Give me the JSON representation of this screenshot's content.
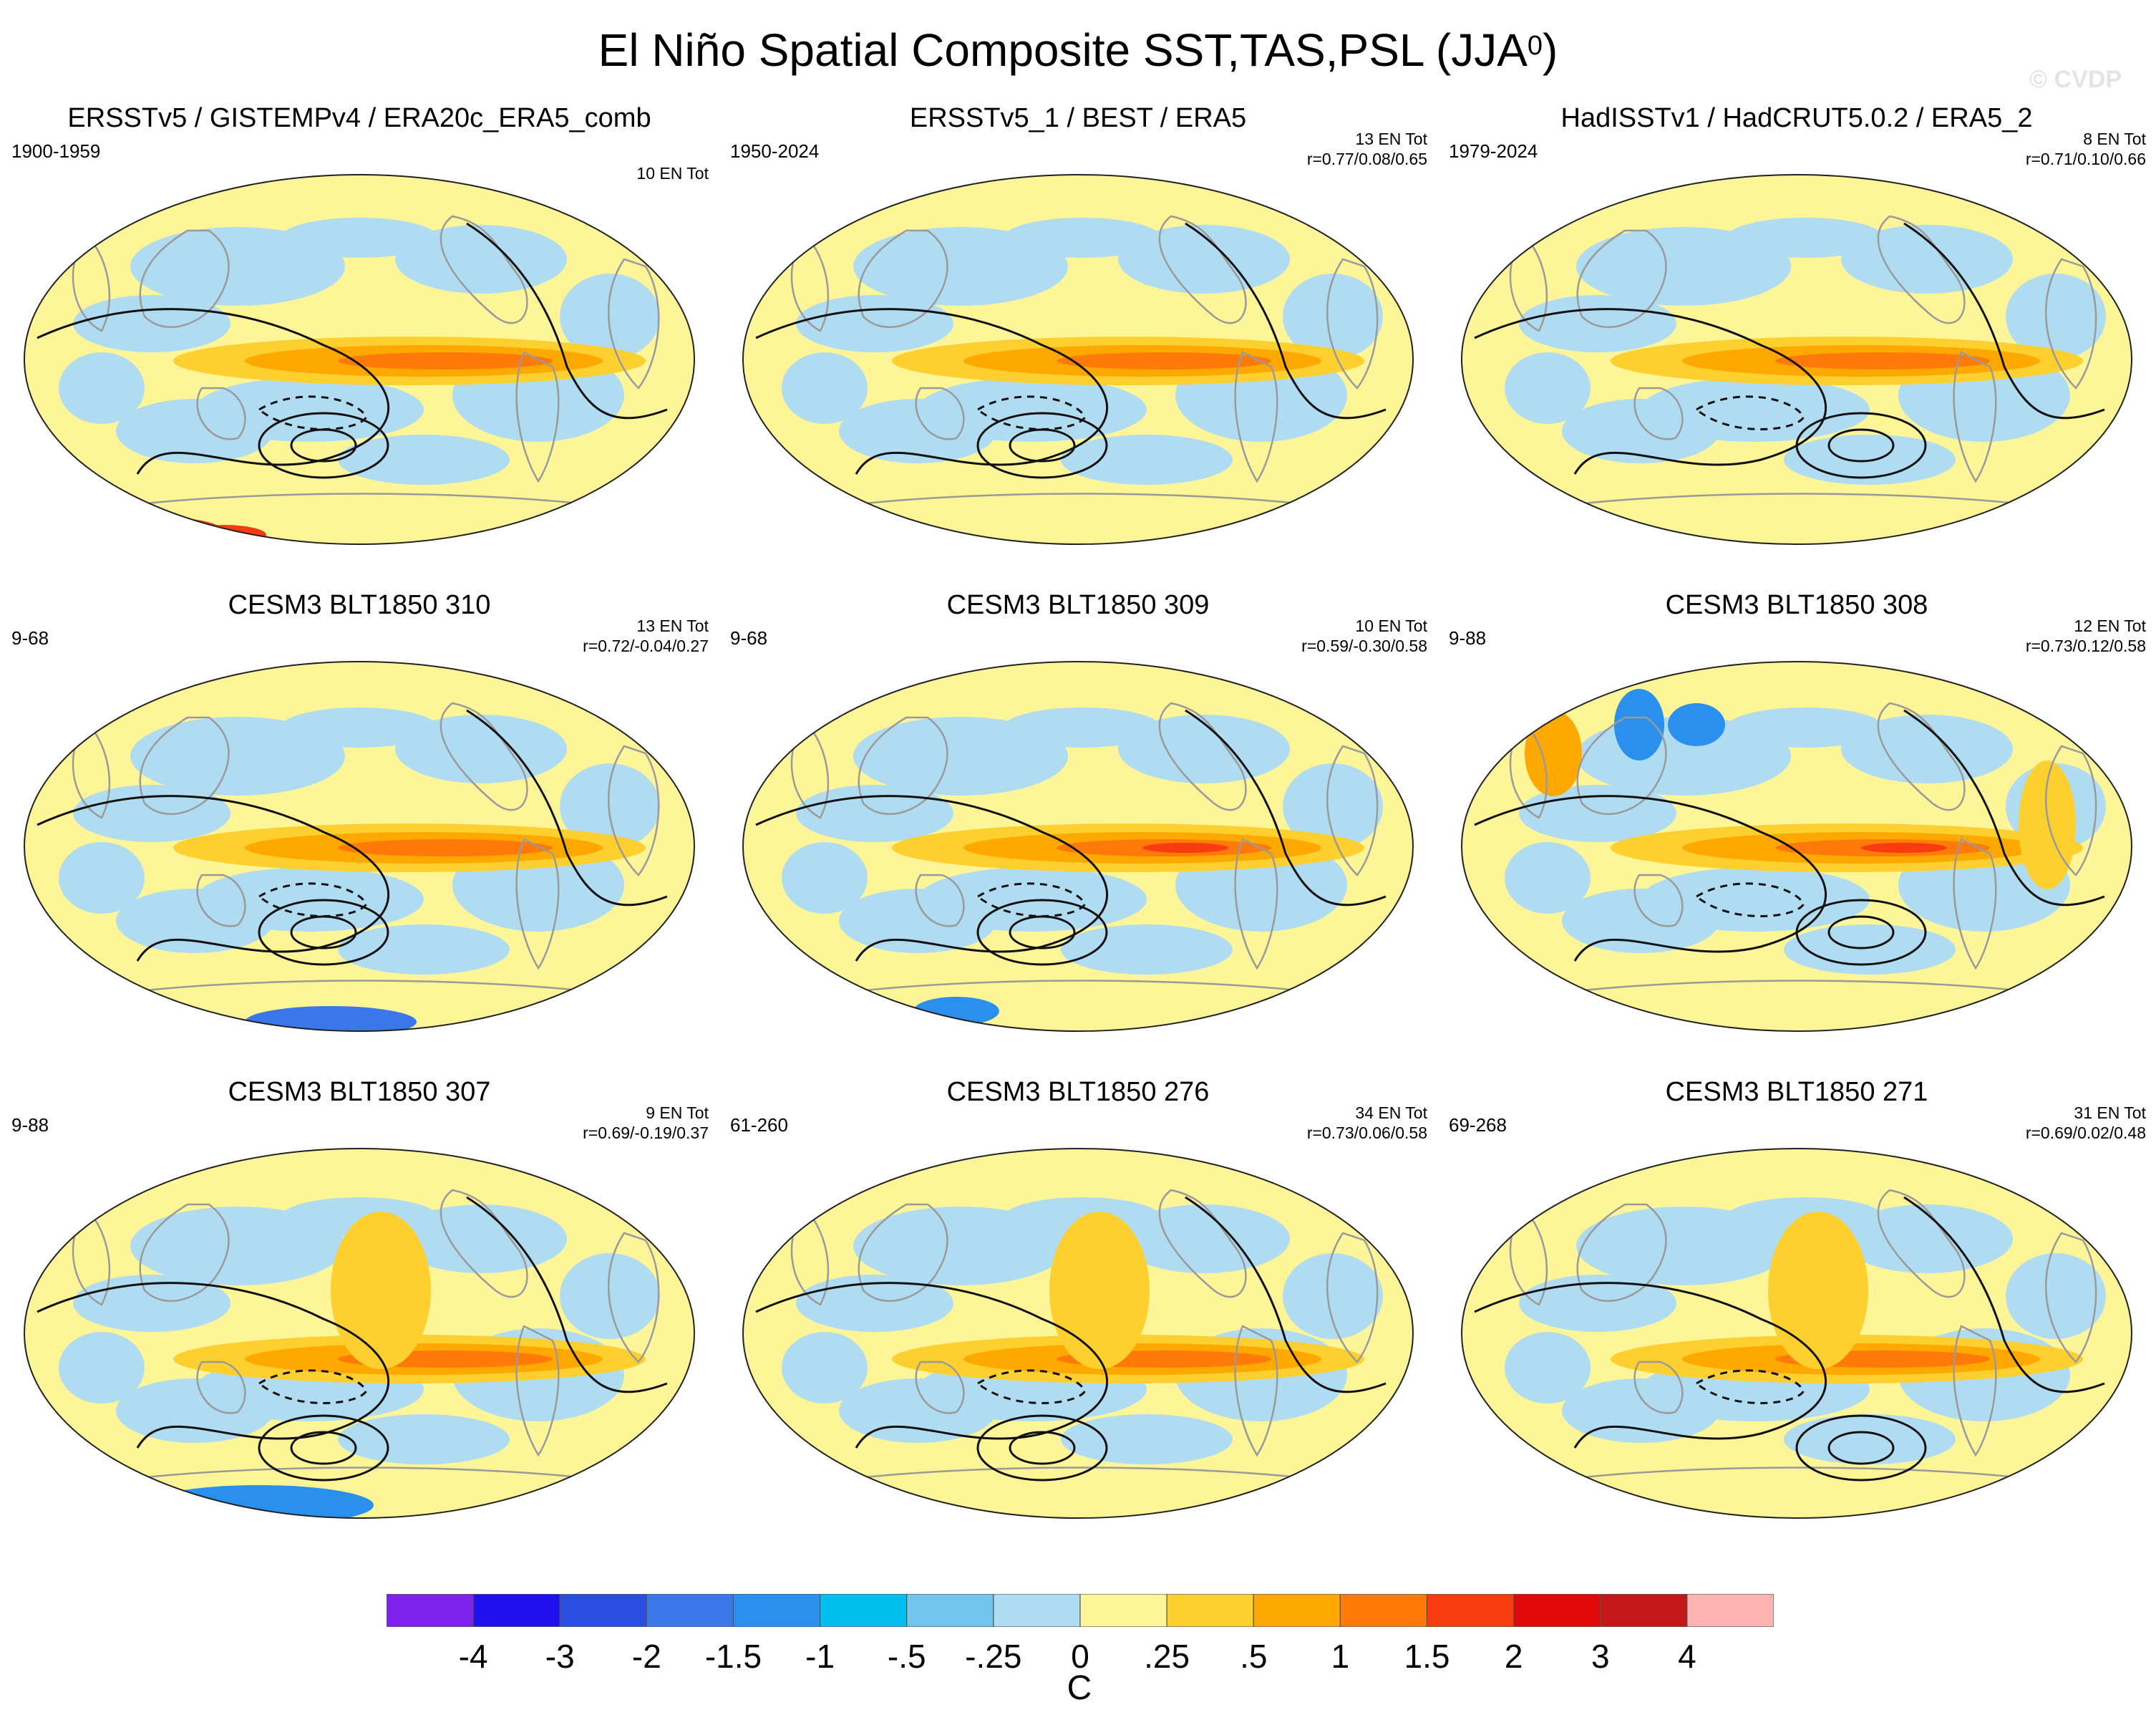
{
  "title_main": "El Niño Spatial Composite SST,TAS,PSL (JJA",
  "title_sup": "0",
  "title_close": ")",
  "watermark": "© CVDP",
  "chart_data": {
    "type": "heatmap",
    "projection": "Robinson-like global map, Pacific-centered",
    "variables": [
      "SST",
      "TAS",
      "PSL"
    ],
    "season": "JJA0",
    "panels": [
      {
        "title": "ERSSTv5 / GISTEMPv4 / ERA20c_ERA5_comb",
        "period": "1900-1959",
        "count": "10 EN Tot",
        "stats": ""
      },
      {
        "title": "ERSSTv5_1 / BEST / ERA5",
        "period": "1950-2024",
        "count": "13 EN Tot",
        "stats": "r=0.77/0.08/0.65"
      },
      {
        "title": "HadISSTv1 / HadCRUT5.0.2 / ERA5_2",
        "period": "1979-2024",
        "count": "8 EN Tot",
        "stats": "r=0.71/0.10/0.66"
      },
      {
        "title": "CESM3 BLT1850 310",
        "period": "9-68",
        "count": "13 EN Tot",
        "stats": "r=0.72/-0.04/0.27"
      },
      {
        "title": "CESM3 BLT1850 309",
        "period": "9-68",
        "count": "10 EN Tot",
        "stats": "r=0.59/-0.30/0.58"
      },
      {
        "title": "CESM3 BLT1850 308",
        "period": "9-88",
        "count": "12 EN Tot",
        "stats": "r=0.73/0.12/0.58"
      },
      {
        "title": "CESM3 BLT1850 307",
        "period": "9-88",
        "count": "9 EN Tot",
        "stats": "r=0.69/-0.19/0.37"
      },
      {
        "title": "CESM3 BLT1850 276",
        "period": "61-260",
        "count": "34 EN Tot",
        "stats": "r=0.73/0.06/0.58"
      },
      {
        "title": "CESM3 BLT1850 271",
        "period": "69-268",
        "count": "31 EN Tot",
        "stats": "r=0.69/0.02/0.48"
      }
    ],
    "colorbar": {
      "unit": "C",
      "labels": [
        "-4",
        "-3",
        "-2",
        "-1.5",
        "-1",
        "-.5",
        "-.25",
        "0",
        ".25",
        ".5",
        "1",
        "1.5",
        "2",
        "3",
        "4"
      ],
      "colors": [
        "#8022ee",
        "#2010ee",
        "#2a4fe0",
        "#3a78ea",
        "#2a90ee",
        "#00bff0",
        "#72c6ee",
        "#b0dcf2",
        "#fdf597",
        "#fdd030",
        "#ffa800",
        "#ff7a08",
        "#f93c10",
        "#e00808",
        "#c41818",
        "#ffb4b4"
      ]
    }
  }
}
